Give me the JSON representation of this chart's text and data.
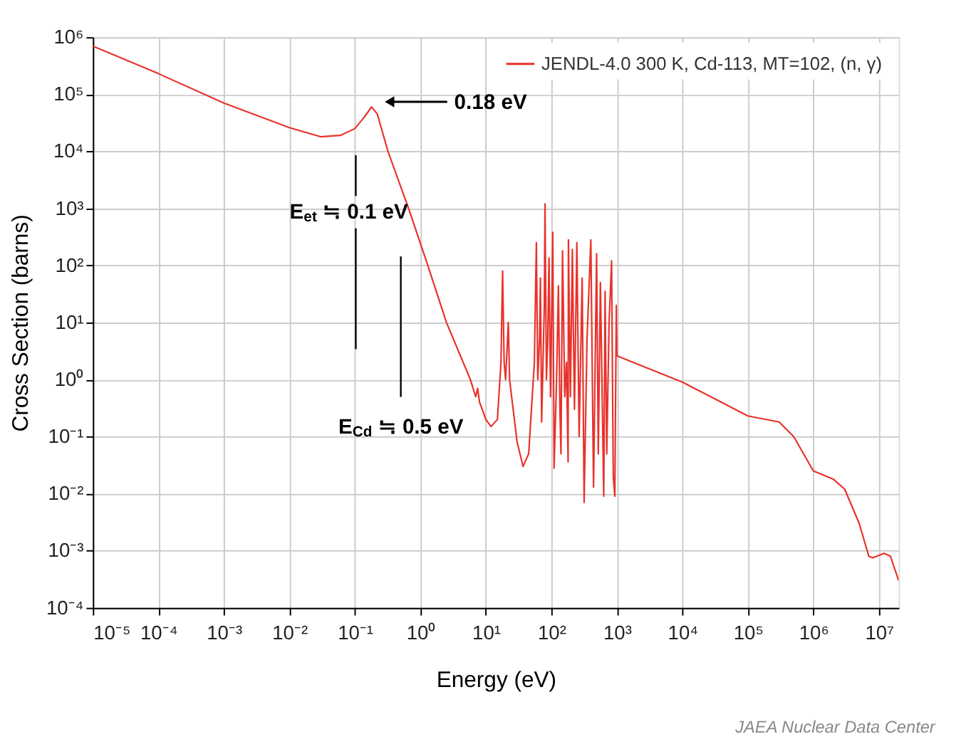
{
  "chart_data": {
    "type": "line",
    "xlabel": "Energy (eV)",
    "ylabel": "Cross Section (barns)",
    "log": "xy",
    "grid": true,
    "legend": "top right",
    "xlim": [
      1e-05,
      20000000.0
    ],
    "ylim": [
      0.0001,
      1000000
    ],
    "xticks": [
      {
        "value": 1e-05,
        "label": "10⁻⁵"
      },
      {
        "value": 0.0001,
        "label": "10⁻⁴"
      },
      {
        "value": 0.001,
        "label": "10⁻³"
      },
      {
        "value": 0.01,
        "label": "10⁻²"
      },
      {
        "value": 0.1,
        "label": "10⁻¹"
      },
      {
        "value": 1,
        "label": "10⁰"
      },
      {
        "value": 10,
        "label": "10¹"
      },
      {
        "value": 100,
        "label": "10²"
      },
      {
        "value": 1000,
        "label": "10³"
      },
      {
        "value": 10000,
        "label": "10⁴"
      },
      {
        "value": 100000,
        "label": "10⁵"
      },
      {
        "value": 1000000,
        "label": "10⁶"
      },
      {
        "value": 10000000,
        "label": "10⁷"
      }
    ],
    "yticks": [
      {
        "value": 0.0001,
        "label": "10⁻⁴"
      },
      {
        "value": 0.001,
        "label": "10⁻³"
      },
      {
        "value": 0.01,
        "label": "10⁻²"
      },
      {
        "value": 0.1,
        "label": "10⁻¹"
      },
      {
        "value": 1,
        "label": "10⁰"
      },
      {
        "value": 10,
        "label": "10¹"
      },
      {
        "value": 100,
        "label": "10²"
      },
      {
        "value": 1000,
        "label": "10³"
      },
      {
        "value": 10000,
        "label": "10⁴"
      },
      {
        "value": 100000,
        "label": "10⁵"
      },
      {
        "value": 1000000,
        "label": "10⁶"
      }
    ],
    "series": [
      {
        "name": "JENDL-4.0  300 K, Cd-113, MT=102, (n, γ)",
        "color": "#e8322b",
        "x": [
          1e-05,
          0.0001,
          0.001,
          0.01,
          0.03,
          0.06,
          0.1,
          0.14,
          0.18,
          0.22,
          0.32,
          0.66,
          1.3,
          2.5,
          5.8,
          7,
          7.5,
          8,
          10,
          12,
          15,
          17,
          18,
          19,
          20,
          22,
          23,
          30,
          37,
          45,
          55,
          59,
          62,
          66,
          68,
          71,
          78,
          80,
          84,
          88,
          92,
          97,
          105,
          110,
          120,
          128,
          135,
          140,
          148,
          160,
          170,
          180,
          182,
          195,
          209,
          225,
          245,
          265,
          295,
          316,
          350,
          400,
          440,
          490,
          520,
          560,
          630,
          660,
          700,
          760,
          830,
          880,
          930,
          980,
          1000,
          10000,
          100000,
          300000,
          500000,
          1000000,
          2000000,
          3000000,
          5000000,
          7000000,
          8000000,
          12000000,
          15000000,
          20000000
        ],
        "values": [
          700000,
          230000,
          70000,
          26000,
          18000,
          19000,
          25000,
          40000,
          60000,
          45000,
          10000,
          1000,
          100,
          10,
          1,
          0.5,
          0.7,
          0.4,
          0.2,
          0.15,
          0.2,
          2,
          80,
          2,
          1,
          10,
          1,
          0.08,
          0.03,
          0.05,
          2,
          250,
          1,
          5,
          60,
          0.18,
          20,
          1200,
          1,
          5,
          135,
          0.5,
          380,
          0.028,
          1,
          44,
          0.3,
          0.05,
          180,
          0.5,
          2,
          0.036,
          280,
          0.5,
          190,
          0.3,
          250,
          0.1,
          60,
          0.007,
          5,
          280,
          0.013,
          160,
          0.05,
          50,
          0.009,
          35,
          0.05,
          10,
          120,
          0.02,
          0.009,
          20,
          2.6,
          0.9,
          0.23,
          0.18,
          0.1,
          0.025,
          0.018,
          0.012,
          0.003,
          0.0008,
          0.00075,
          0.0009,
          0.0008,
          0.0003
        ]
      }
    ],
    "annotations": [
      "0.18 eV",
      "E$_{et}$ ≒ 0.1 eV",
      "E$_{Cd}$ ≒ 0.5 eV",
      "JAEA Nuclear Data Center"
    ]
  }
}
